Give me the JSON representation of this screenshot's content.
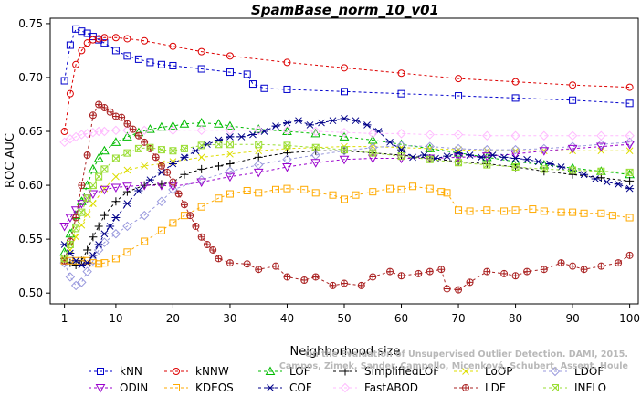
{
  "chart_data": {
    "type": "line",
    "title": "SpamBase_norm_10_v01",
    "xlabel": "Neighborhood size",
    "ylabel": "ROC AUC",
    "xlim": [
      0,
      100
    ],
    "ylim": [
      0.5,
      0.75
    ],
    "x_ticks": [
      "1",
      "10",
      "20",
      "30",
      "40",
      "50",
      "60",
      "70",
      "80",
      "90",
      "100"
    ],
    "y_ticks": [
      "0.50",
      "0.55",
      "0.60",
      "0.65",
      "0.70",
      "0.75"
    ],
    "grid": false,
    "legend_position": "bottom",
    "watermark": [
      "Campos, Zimek, Sander, Campello, Micenková, Schubert, Assent, Houle",
      "On the Evaluation of Unsupervised Outlier Detection. DAMI, 2015."
    ],
    "series": [
      {
        "name": "kNN",
        "color": "#0000cc",
        "marker": "square",
        "x": [
          1,
          2,
          3,
          4,
          5,
          6,
          7,
          8,
          10,
          12,
          14,
          16,
          18,
          20,
          25,
          30,
          33,
          34,
          36,
          40,
          50,
          60,
          70,
          80,
          90,
          100
        ],
        "y": [
          0.697,
          0.73,
          0.745,
          0.743,
          0.741,
          0.738,
          0.735,
          0.732,
          0.725,
          0.72,
          0.717,
          0.714,
          0.712,
          0.711,
          0.708,
          0.705,
          0.703,
          0.694,
          0.69,
          0.689,
          0.687,
          0.685,
          0.683,
          0.681,
          0.679,
          0.676
        ]
      },
      {
        "name": "kNNW",
        "color": "#dd0000",
        "marker": "circle",
        "x": [
          1,
          2,
          3,
          4,
          5,
          6,
          7,
          8,
          10,
          12,
          15,
          20,
          25,
          30,
          40,
          50,
          60,
          70,
          80,
          90,
          100
        ],
        "y": [
          0.65,
          0.685,
          0.712,
          0.725,
          0.732,
          0.735,
          0.736,
          0.737,
          0.737,
          0.736,
          0.734,
          0.729,
          0.724,
          0.72,
          0.714,
          0.709,
          0.704,
          0.699,
          0.696,
          0.693,
          0.691
        ]
      },
      {
        "name": "LOF",
        "color": "#00bb00",
        "marker": "triangle-up",
        "x": [
          1,
          2,
          3,
          4,
          5,
          6,
          7,
          8,
          10,
          12,
          14,
          16,
          18,
          20,
          22,
          25,
          28,
          30,
          35,
          40,
          45,
          50,
          55,
          60,
          65,
          70,
          75,
          80,
          85,
          90,
          95,
          100
        ],
        "y": [
          0.538,
          0.555,
          0.572,
          0.585,
          0.6,
          0.615,
          0.625,
          0.632,
          0.64,
          0.645,
          0.649,
          0.652,
          0.654,
          0.655,
          0.657,
          0.658,
          0.657,
          0.655,
          0.652,
          0.65,
          0.648,
          0.645,
          0.642,
          0.638,
          0.634,
          0.63,
          0.626,
          0.622,
          0.619,
          0.616,
          0.613,
          0.61
        ]
      },
      {
        "name": "SimplifiedLOF",
        "color": "#000000",
        "marker": "plus",
        "x": [
          1,
          2,
          3,
          4,
          5,
          6,
          7,
          8,
          10,
          12,
          15,
          18,
          20,
          22,
          25,
          28,
          30,
          35,
          40,
          45,
          50,
          55,
          60,
          65,
          70,
          75,
          80,
          85,
          90,
          95,
          100
        ],
        "y": [
          0.532,
          0.528,
          0.526,
          0.53,
          0.54,
          0.552,
          0.562,
          0.572,
          0.585,
          0.594,
          0.6,
          0.601,
          0.603,
          0.61,
          0.615,
          0.618,
          0.62,
          0.626,
          0.63,
          0.632,
          0.632,
          0.63,
          0.628,
          0.625,
          0.622,
          0.62,
          0.617,
          0.613,
          0.61,
          0.607,
          0.604
        ]
      },
      {
        "name": "LoOP",
        "color": "#dddd00",
        "marker": "x",
        "x": [
          1,
          2,
          3,
          4,
          5,
          6,
          8,
          10,
          12,
          15,
          18,
          20,
          25,
          30,
          35,
          40,
          45,
          50,
          55,
          60,
          65,
          70,
          75,
          80,
          85,
          90,
          95,
          100
        ],
        "y": [
          0.53,
          0.54,
          0.552,
          0.563,
          0.573,
          0.583,
          0.597,
          0.608,
          0.614,
          0.618,
          0.62,
          0.622,
          0.626,
          0.629,
          0.632,
          0.634,
          0.635,
          0.636,
          0.636,
          0.635,
          0.634,
          0.633,
          0.632,
          0.632,
          0.632,
          0.632,
          0.632,
          0.632
        ]
      },
      {
        "name": "LDOF",
        "color": "#9999dd",
        "marker": "diamond",
        "x": [
          1,
          2,
          3,
          4,
          5,
          6,
          7,
          8,
          10,
          12,
          15,
          18,
          20,
          25,
          30,
          35,
          40,
          45,
          50,
          55,
          60,
          65,
          70,
          75,
          80,
          85,
          90,
          95,
          100
        ],
        "y": [
          0.528,
          0.515,
          0.507,
          0.51,
          0.52,
          0.53,
          0.54,
          0.547,
          0.555,
          0.562,
          0.572,
          0.585,
          0.596,
          0.605,
          0.613,
          0.619,
          0.624,
          0.628,
          0.632,
          0.635,
          0.637,
          0.636,
          0.634,
          0.633,
          0.633,
          0.634,
          0.636,
          0.638,
          0.64
        ]
      },
      {
        "name": "ODIN",
        "color": "#9900cc",
        "marker": "triangle-down",
        "x": [
          1,
          2,
          3,
          4,
          5,
          6,
          8,
          10,
          12,
          15,
          18,
          20,
          25,
          30,
          35,
          40,
          45,
          50,
          55,
          60,
          65,
          70,
          75,
          80,
          85,
          90,
          95,
          100
        ],
        "y": [
          0.562,
          0.57,
          0.577,
          0.583,
          0.588,
          0.592,
          0.596,
          0.598,
          0.599,
          0.6,
          0.6,
          0.599,
          0.603,
          0.608,
          0.612,
          0.617,
          0.621,
          0.624,
          0.625,
          0.625,
          0.625,
          0.626,
          0.627,
          0.629,
          0.632,
          0.634,
          0.636,
          0.638
        ]
      },
      {
        "name": "KDEOS",
        "color": "#ffaa00",
        "marker": "square",
        "x": [
          1,
          2,
          3,
          4,
          5,
          6,
          7,
          8,
          10,
          12,
          15,
          18,
          20,
          22,
          25,
          28,
          30,
          33,
          35,
          38,
          40,
          43,
          45,
          48,
          50,
          52,
          55,
          58,
          60,
          62,
          65,
          67,
          68,
          70,
          72,
          75,
          78,
          80,
          83,
          85,
          88,
          90,
          92,
          95,
          97,
          100
        ],
        "y": [
          0.53,
          0.53,
          0.53,
          0.53,
          0.53,
          0.528,
          0.527,
          0.528,
          0.532,
          0.538,
          0.548,
          0.558,
          0.565,
          0.572,
          0.58,
          0.588,
          0.592,
          0.595,
          0.593,
          0.596,
          0.597,
          0.596,
          0.593,
          0.591,
          0.587,
          0.591,
          0.594,
          0.597,
          0.596,
          0.599,
          0.597,
          0.594,
          0.593,
          0.577,
          0.576,
          0.577,
          0.576,
          0.577,
          0.578,
          0.576,
          0.575,
          0.575,
          0.574,
          0.574,
          0.572,
          0.57
        ]
      },
      {
        "name": "COF",
        "color": "#000088",
        "marker": "asterisk",
        "x": [
          1,
          2,
          3,
          4,
          5,
          6,
          7,
          8,
          9,
          10,
          12,
          14,
          16,
          18,
          20,
          22,
          24,
          26,
          28,
          30,
          32,
          34,
          36,
          38,
          40,
          42,
          44,
          46,
          48,
          50,
          52,
          54,
          56,
          58,
          60,
          62,
          64,
          66,
          68,
          70,
          72,
          74,
          76,
          78,
          80,
          82,
          84,
          86,
          88,
          90,
          92,
          94,
          96,
          98,
          100
        ],
        "y": [
          0.545,
          0.537,
          0.53,
          0.526,
          0.528,
          0.535,
          0.545,
          0.555,
          0.562,
          0.57,
          0.583,
          0.595,
          0.605,
          0.612,
          0.62,
          0.626,
          0.632,
          0.638,
          0.642,
          0.645,
          0.645,
          0.647,
          0.65,
          0.655,
          0.658,
          0.66,
          0.656,
          0.658,
          0.66,
          0.662,
          0.66,
          0.656,
          0.65,
          0.64,
          0.633,
          0.626,
          0.628,
          0.625,
          0.627,
          0.63,
          0.628,
          0.626,
          0.628,
          0.626,
          0.625,
          0.624,
          0.622,
          0.62,
          0.617,
          0.614,
          0.61,
          0.606,
          0.603,
          0.601,
          0.597
        ]
      },
      {
        "name": "FastABOD",
        "color": "#ffbbff",
        "marker": "diamond",
        "x": [
          1,
          2,
          3,
          4,
          5,
          6,
          7,
          8,
          10,
          12,
          15,
          20,
          25,
          30,
          35,
          40,
          45,
          50,
          55,
          60,
          65,
          70,
          75,
          80,
          85,
          90,
          95,
          100
        ],
        "y": [
          0.64,
          0.643,
          0.645,
          0.647,
          0.648,
          0.649,
          0.65,
          0.65,
          0.651,
          0.651,
          0.651,
          0.651,
          0.651,
          0.651,
          0.651,
          0.651,
          0.65,
          0.649,
          0.648,
          0.648,
          0.647,
          0.647,
          0.646,
          0.646,
          0.646,
          0.646,
          0.646,
          0.646
        ]
      },
      {
        "name": "LDF",
        "color": "#aa2222",
        "marker": "circle-plus",
        "x": [
          1,
          2,
          3,
          4,
          5,
          6,
          7,
          8,
          9,
          10,
          11,
          12,
          13,
          14,
          15,
          16,
          17,
          18,
          19,
          20,
          21,
          22,
          23,
          24,
          25,
          26,
          27,
          28,
          30,
          33,
          35,
          38,
          40,
          43,
          45,
          48,
          50,
          53,
          55,
          58,
          60,
          63,
          65,
          67,
          68,
          70,
          72,
          75,
          78,
          80,
          82,
          85,
          88,
          90,
          92,
          95,
          98,
          100
        ],
        "y": [
          0.53,
          0.548,
          0.57,
          0.6,
          0.628,
          0.665,
          0.675,
          0.672,
          0.668,
          0.664,
          0.663,
          0.657,
          0.652,
          0.646,
          0.64,
          0.634,
          0.626,
          0.618,
          0.612,
          0.603,
          0.592,
          0.582,
          0.572,
          0.562,
          0.552,
          0.545,
          0.54,
          0.532,
          0.528,
          0.527,
          0.522,
          0.525,
          0.515,
          0.512,
          0.515,
          0.507,
          0.509,
          0.507,
          0.515,
          0.52,
          0.516,
          0.518,
          0.52,
          0.522,
          0.504,
          0.503,
          0.51,
          0.52,
          0.518,
          0.516,
          0.52,
          0.522,
          0.528,
          0.525,
          0.522,
          0.525,
          0.528,
          0.535
        ]
      },
      {
        "name": "INFLO",
        "color": "#99dd33",
        "marker": "square-x",
        "x": [
          1,
          2,
          3,
          4,
          5,
          6,
          7,
          8,
          10,
          12,
          14,
          16,
          18,
          20,
          22,
          25,
          28,
          30,
          35,
          40,
          45,
          50,
          55,
          60,
          65,
          70,
          75,
          80,
          85,
          90,
          95,
          100
        ],
        "y": [
          0.532,
          0.545,
          0.56,
          0.575,
          0.588,
          0.6,
          0.608,
          0.615,
          0.625,
          0.63,
          0.634,
          0.635,
          0.633,
          0.632,
          0.634,
          0.637,
          0.638,
          0.638,
          0.638,
          0.637,
          0.635,
          0.633,
          0.63,
          0.627,
          0.624,
          0.621,
          0.619,
          0.617,
          0.615,
          0.614,
          0.613,
          0.612
        ]
      }
    ]
  }
}
